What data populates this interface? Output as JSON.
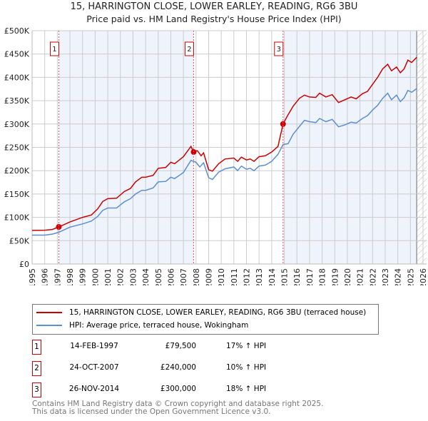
{
  "chart_data": {
    "type": "line",
    "title": "15, HARRINGTON CLOSE, LOWER EARLEY, READING, RG6 3BU",
    "subtitle": "Price paid vs. HM Land Registry's House Price Index (HPI)",
    "xlim": [
      1995,
      2026
    ],
    "ylim": [
      0,
      500000
    ],
    "x_ticks": [
      "1995",
      "1996",
      "1997",
      "1998",
      "1999",
      "2000",
      "2001",
      "2002",
      "2003",
      "2004",
      "2005",
      "2006",
      "2007",
      "2008",
      "2009",
      "2010",
      "2011",
      "2012",
      "2013",
      "2014",
      "2015",
      "2016",
      "2017",
      "2018",
      "2019",
      "2020",
      "2021",
      "2022",
      "2023",
      "2024",
      "2025",
      "2026"
    ],
    "y_ticks": [
      {
        "v": 0,
        "label": "£0"
      },
      {
        "v": 50000,
        "label": "£50K"
      },
      {
        "v": 100000,
        "label": "£100K"
      },
      {
        "v": 150000,
        "label": "£150K"
      },
      {
        "v": 200000,
        "label": "£200K"
      },
      {
        "v": 250000,
        "label": "£250K"
      },
      {
        "v": 300000,
        "label": "£300K"
      },
      {
        "v": 350000,
        "label": "£350K"
      },
      {
        "v": 400000,
        "label": "£400K"
      },
      {
        "v": 450000,
        "label": "£450K"
      },
      {
        "v": 500000,
        "label": "£500K"
      }
    ],
    "grid": true,
    "colors": {
      "property": "#cc0000",
      "hpi": "#5b8fd4",
      "band": "#eef3fc",
      "marker_line": "#ee5555"
    },
    "shaded_ranges": [
      [
        1997.12,
        2007.81
      ],
      [
        2014.9,
        2025.5
      ]
    ],
    "future_hatch_from": 2025.5,
    "series": [
      {
        "name": "15, HARRINGTON CLOSE, LOWER EARLEY, READING, RG6 3BU (terraced house)",
        "key": "property",
        "points": [
          [
            1995,
            72000
          ],
          [
            1996,
            72500
          ],
          [
            1996.6,
            74000
          ],
          [
            1997.12,
            79500
          ],
          [
            1998,
            90000
          ],
          [
            1999,
            100000
          ],
          [
            1999.7,
            105000
          ],
          [
            2000.2,
            118000
          ],
          [
            2000.6,
            134000
          ],
          [
            2001,
            140000
          ],
          [
            2001.7,
            141000
          ],
          [
            2002.3,
            155000
          ],
          [
            2002.8,
            162000
          ],
          [
            2003.2,
            176000
          ],
          [
            2003.7,
            186000
          ],
          [
            2004,
            186000
          ],
          [
            2004.6,
            190000
          ],
          [
            2005,
            205000
          ],
          [
            2005.6,
            207000
          ],
          [
            2006,
            218000
          ],
          [
            2006.3,
            215000
          ],
          [
            2007,
            230000
          ],
          [
            2007.6,
            252000
          ],
          [
            2007.81,
            240000
          ],
          [
            2008.1,
            243000
          ],
          [
            2008.4,
            232000
          ],
          [
            2008.6,
            238000
          ],
          [
            2009,
            202000
          ],
          [
            2009.3,
            199000
          ],
          [
            2009.8,
            215000
          ],
          [
            2010.3,
            225000
          ],
          [
            2011,
            227000
          ],
          [
            2011.3,
            220000
          ],
          [
            2011.6,
            229000
          ],
          [
            2012,
            223000
          ],
          [
            2012.3,
            225000
          ],
          [
            2012.6,
            220000
          ],
          [
            2013,
            230000
          ],
          [
            2013.5,
            232000
          ],
          [
            2014,
            240000
          ],
          [
            2014.5,
            252000
          ],
          [
            2014.9,
            300000
          ],
          [
            2015.3,
            320000
          ],
          [
            2015.7,
            338000
          ],
          [
            2016.2,
            355000
          ],
          [
            2016.6,
            362000
          ],
          [
            2017,
            358000
          ],
          [
            2017.5,
            357000
          ],
          [
            2017.8,
            366000
          ],
          [
            2018.3,
            358000
          ],
          [
            2018.8,
            363000
          ],
          [
            2019.3,
            346000
          ],
          [
            2019.8,
            352000
          ],
          [
            2020.3,
            358000
          ],
          [
            2020.7,
            354000
          ],
          [
            2021.2,
            365000
          ],
          [
            2021.6,
            370000
          ],
          [
            2022,
            385000
          ],
          [
            2022.4,
            400000
          ],
          [
            2022.8,
            418000
          ],
          [
            2023.2,
            428000
          ],
          [
            2023.5,
            414000
          ],
          [
            2023.9,
            422000
          ],
          [
            2024.2,
            410000
          ],
          [
            2024.5,
            418000
          ],
          [
            2024.8,
            437000
          ],
          [
            2025.1,
            432000
          ],
          [
            2025.5,
            443000
          ]
        ]
      },
      {
        "name": "HPI: Average price, terraced house, Wokingham",
        "key": "hpi",
        "points": [
          [
            1995,
            62000
          ],
          [
            1996,
            62000
          ],
          [
            1996.6,
            64000
          ],
          [
            1997.12,
            68000
          ],
          [
            1998,
            79000
          ],
          [
            1999,
            86000
          ],
          [
            1999.7,
            92000
          ],
          [
            2000.2,
            102000
          ],
          [
            2000.6,
            115000
          ],
          [
            2001,
            120000
          ],
          [
            2001.7,
            120000
          ],
          [
            2002.3,
            133000
          ],
          [
            2002.8,
            140000
          ],
          [
            2003.2,
            150000
          ],
          [
            2003.7,
            158000
          ],
          [
            2004,
            158000
          ],
          [
            2004.6,
            163000
          ],
          [
            2005,
            176000
          ],
          [
            2005.6,
            177000
          ],
          [
            2006,
            186000
          ],
          [
            2006.3,
            183000
          ],
          [
            2007,
            196000
          ],
          [
            2007.6,
            222000
          ],
          [
            2008,
            218000
          ],
          [
            2008.3,
            208000
          ],
          [
            2008.6,
            217000
          ],
          [
            2009,
            185000
          ],
          [
            2009.3,
            181000
          ],
          [
            2009.8,
            197000
          ],
          [
            2010.3,
            204000
          ],
          [
            2011,
            208000
          ],
          [
            2011.3,
            200000
          ],
          [
            2011.6,
            210000
          ],
          [
            2012,
            203000
          ],
          [
            2012.3,
            205000
          ],
          [
            2012.6,
            200000
          ],
          [
            2013,
            210000
          ],
          [
            2013.5,
            212000
          ],
          [
            2014,
            220000
          ],
          [
            2014.5,
            235000
          ],
          [
            2014.9,
            256000
          ],
          [
            2015.3,
            258000
          ],
          [
            2015.7,
            278000
          ],
          [
            2016.2,
            295000
          ],
          [
            2016.6,
            308000
          ],
          [
            2017,
            305000
          ],
          [
            2017.5,
            303000
          ],
          [
            2017.8,
            312000
          ],
          [
            2018.3,
            305000
          ],
          [
            2018.8,
            310000
          ],
          [
            2019.3,
            294000
          ],
          [
            2019.8,
            298000
          ],
          [
            2020.3,
            304000
          ],
          [
            2020.7,
            302000
          ],
          [
            2021.2,
            312000
          ],
          [
            2021.6,
            318000
          ],
          [
            2022,
            330000
          ],
          [
            2022.4,
            340000
          ],
          [
            2022.8,
            355000
          ],
          [
            2023.2,
            366000
          ],
          [
            2023.5,
            352000
          ],
          [
            2023.9,
            362000
          ],
          [
            2024.2,
            348000
          ],
          [
            2024.5,
            356000
          ],
          [
            2024.8,
            372000
          ],
          [
            2025.1,
            368000
          ],
          [
            2025.5,
            376000
          ]
        ]
      }
    ],
    "sales": [
      {
        "id": "1",
        "x": 1997.12,
        "price": 79500,
        "date": "14-FEB-1997",
        "price_label": "£79,500",
        "hpi_label": "17% ↑ HPI"
      },
      {
        "id": "2",
        "x": 2007.81,
        "price": 240000,
        "date": "24-OCT-2007",
        "price_label": "£240,000",
        "hpi_label": "10% ↑ HPI"
      },
      {
        "id": "3",
        "x": 2014.9,
        "price": 300000,
        "date": "26-NOV-2014",
        "price_label": "£300,000",
        "hpi_label": "18% ↑ HPI"
      }
    ]
  },
  "header": {
    "title": "15, HARRINGTON CLOSE, LOWER EARLEY, READING, RG6 3BU",
    "subtitle": "Price paid vs. HM Land Registry's House Price Index (HPI)"
  },
  "legend": {
    "property": "15, HARRINGTON CLOSE, LOWER EARLEY, READING, RG6 3BU (terraced house)",
    "hpi": "HPI: Average price, terraced house, Wokingham"
  },
  "footer": {
    "line1": "Contains HM Land Registry data © Crown copyright and database right 2025.",
    "line2": "This data is licensed under the Open Government Licence v3.0."
  }
}
